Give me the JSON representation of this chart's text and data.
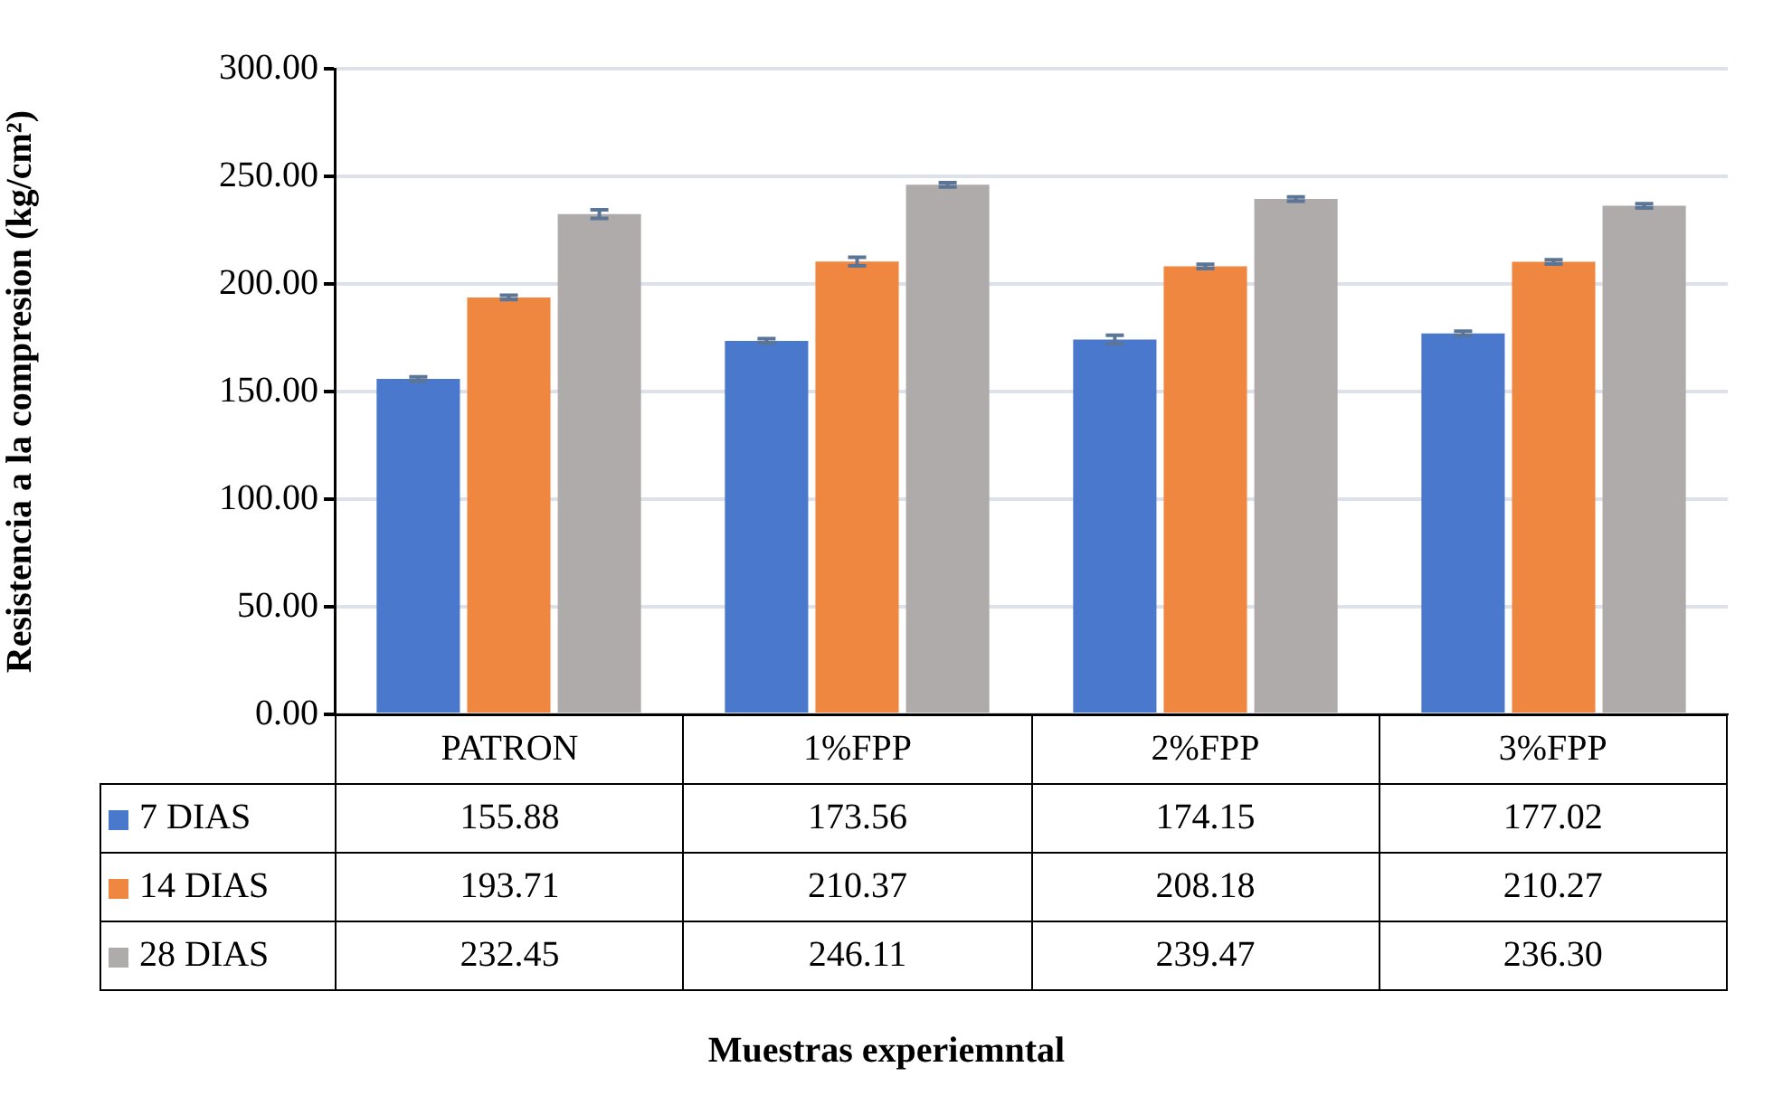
{
  "chart_data": {
    "type": "bar",
    "ylabel": "Resistencia a la compresion (kg/cm²)",
    "annotations": [
      "Muestras experiemntal"
    ],
    "categories": [
      "PATRON",
      "1%FPP",
      "2%FPP",
      "3%FPP"
    ],
    "series": [
      {
        "name": "7 DIAS",
        "color": "#4a78cc",
        "values": [
          155.88,
          173.56,
          174.15,
          177.02
        ],
        "errors": [
          1,
          1,
          2,
          1
        ]
      },
      {
        "name": "14 DIAS",
        "color": "#f08740",
        "values": [
          193.71,
          210.37,
          208.18,
          210.27
        ],
        "errors": [
          1,
          2,
          1,
          1
        ]
      },
      {
        "name": "28 DIAS",
        "color": "#afabaa",
        "values": [
          232.45,
          246.11,
          239.47,
          236.3
        ],
        "errors": [
          2,
          1,
          1,
          1
        ]
      }
    ],
    "value_labels": [
      [
        "155.88",
        "173.56",
        "174.15",
        "177.02"
      ],
      [
        "193.71",
        "210.37",
        "208.18",
        "210.27"
      ],
      [
        "232.45",
        "246.11",
        "239.47",
        "236.30"
      ]
    ],
    "ylim": [
      0,
      300
    ],
    "yticks": [
      {
        "value": 0,
        "label": "0.00"
      },
      {
        "value": 50,
        "label": "50.00"
      },
      {
        "value": 100,
        "label": "100.00"
      },
      {
        "value": 150,
        "label": "150.00"
      },
      {
        "value": 200,
        "label": "200.00"
      },
      {
        "value": 250,
        "label": "250.00"
      },
      {
        "value": 300,
        "label": "300.00"
      }
    ],
    "grid": "y",
    "legend": "bottom left"
  }
}
